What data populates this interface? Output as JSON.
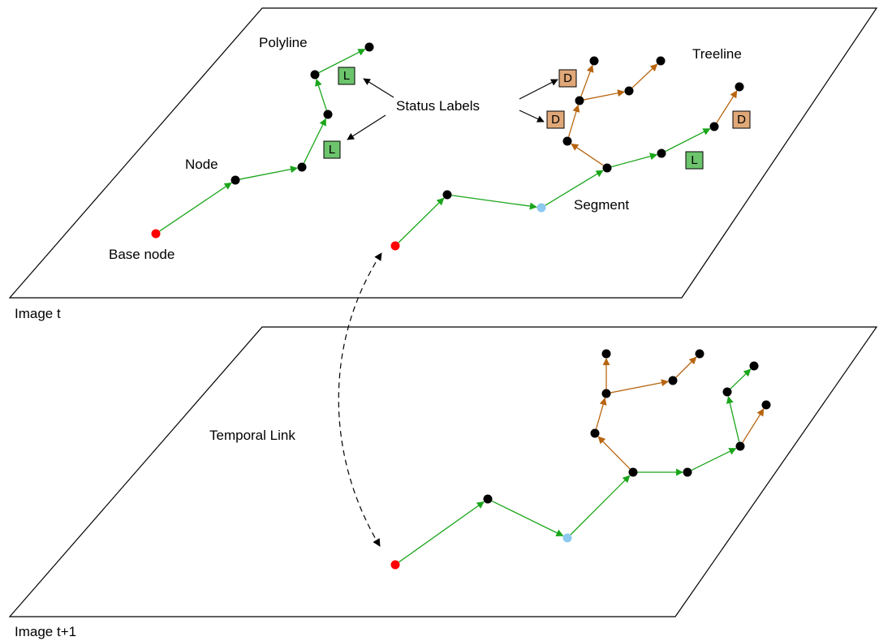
{
  "colors": {
    "plane_stroke": "#000000",
    "green_edge": "#1aa51a",
    "brown_edge": "#b8650f",
    "node_black": "#000000",
    "node_base": "#ff0000",
    "node_segment": "#8ec9f0",
    "label_L_fill": "#6cc46c",
    "label_D_fill": "#e0a878",
    "pointer": "#000000"
  },
  "image_t": {
    "caption": "Image t",
    "annotations": {
      "polyline": "Polyline",
      "treeline": "Treeline",
      "status_labels": "Status Labels",
      "node": "Node",
      "segment": "Segment",
      "base_node": "Base node"
    },
    "status_badges": [
      {
        "id": "L1",
        "text": "L",
        "kind": "L"
      },
      {
        "id": "L2",
        "text": "L",
        "kind": "L"
      },
      {
        "id": "D1",
        "text": "D",
        "kind": "D"
      },
      {
        "id": "D2",
        "text": "D",
        "kind": "D"
      },
      {
        "id": "D3",
        "text": "D",
        "kind": "D"
      },
      {
        "id": "L3",
        "text": "L",
        "kind": "L"
      }
    ]
  },
  "image_t1": {
    "caption": "Image t+1",
    "annotations": {
      "temporal_link": "Temporal Link"
    }
  }
}
